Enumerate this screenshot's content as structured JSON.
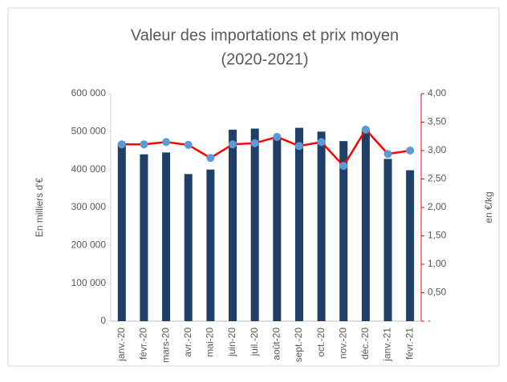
{
  "chart_data": {
    "type": "bar",
    "title": "Valeur des importations et prix moyen",
    "subtitle": "(2020-2021)",
    "y_label": "En milliers d'€",
    "y2_label": "en €/kg",
    "categories": [
      "janv.-20",
      "févr.-20",
      "mars-20",
      "avr.-20",
      "mai-20",
      "juin-20",
      "juil.-20",
      "août-20",
      "sept.-20",
      "oct.-20",
      "nov.-20",
      "déc.-20",
      "janv.-21",
      "févr.-21"
    ],
    "series": [
      {
        "type": "bar",
        "color": "#1f3f66",
        "values": [
          470000,
          440000,
          445000,
          388000,
          400000,
          505000,
          508000,
          485000,
          510000,
          500000,
          475000,
          505000,
          428000,
          398000
        ]
      },
      {
        "type": "line",
        "axis": "y2",
        "color": "#ff0000",
        "marker_color": "#5b9bd5",
        "values": [
          3.11,
          3.11,
          3.15,
          3.1,
          2.87,
          3.11,
          3.13,
          3.24,
          3.08,
          3.15,
          2.73,
          3.37,
          2.94,
          3.0
        ]
      }
    ],
    "ylim": [
      0,
      600000
    ],
    "yticks": [
      {
        "value": 0,
        "label": "0"
      },
      {
        "value": 100000,
        "label": "100 000"
      },
      {
        "value": 200000,
        "label": "200 000"
      },
      {
        "value": 300000,
        "label": "300 000"
      },
      {
        "value": 400000,
        "label": "400 000"
      },
      {
        "value": 500000,
        "label": "500 000"
      },
      {
        "value": 600000,
        "label": "600 000"
      }
    ],
    "y2lim": [
      0,
      4
    ],
    "y2ticks": [
      {
        "value": 0,
        "label": "-"
      },
      {
        "value": 0.5,
        "label": "0,50"
      },
      {
        "value": 1,
        "label": "1,00"
      },
      {
        "value": 1.5,
        "label": "1,50"
      },
      {
        "value": 2,
        "label": "2,00"
      },
      {
        "value": 2.5,
        "label": "2,50"
      },
      {
        "value": 3,
        "label": "3,00"
      },
      {
        "value": 3.5,
        "label": "3,50"
      },
      {
        "value": 4,
        "label": "4,00"
      }
    ]
  }
}
